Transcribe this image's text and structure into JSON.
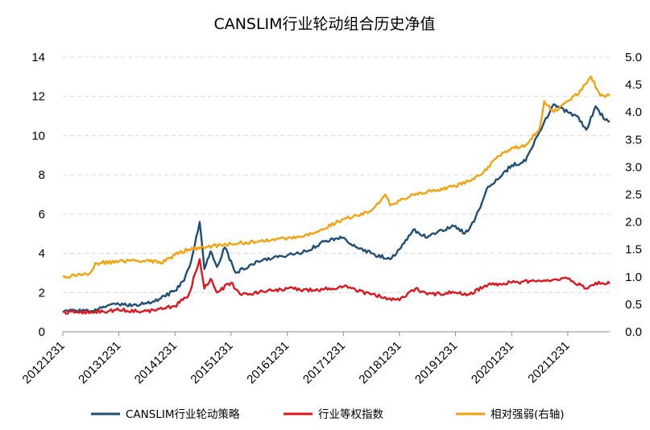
{
  "chart_data": {
    "type": "line",
    "title": "CANSLIM行业轮动组合历史净值",
    "x_tick_labels": [
      "20121231",
      "20131231",
      "20141231",
      "20151231",
      "20161231",
      "20171231",
      "20181231",
      "20191231",
      "20201231",
      "20211231"
    ],
    "x_range": [
      "2012-12-31",
      "2022-09-30"
    ],
    "y_left": {
      "min": 0,
      "max": 14,
      "ticks": [
        "0",
        "2",
        "4",
        "6",
        "8",
        "10",
        "12",
        "14"
      ]
    },
    "y_right": {
      "min": 0,
      "max": 5,
      "ticks": [
        "0.0",
        "0.5",
        "1.0",
        "1.5",
        "2.0",
        "2.5",
        "3.0",
        "3.5",
        "4.0",
        "4.5",
        "5.0"
      ]
    },
    "grid": true,
    "legend_position": "bottom",
    "series": [
      {
        "name": "CANSLIM行业轮动策略",
        "axis": "left",
        "color": "#1f4e79",
        "points": [
          [
            "2012-12-31",
            1.0
          ],
          [
            "2013-03-31",
            1.08
          ],
          [
            "2013-06-30",
            1.05
          ],
          [
            "2013-09-30",
            1.25
          ],
          [
            "2013-12-31",
            1.4
          ],
          [
            "2014-03-31",
            1.35
          ],
          [
            "2014-06-30",
            1.45
          ],
          [
            "2014-09-30",
            1.7
          ],
          [
            "2014-12-31",
            2.1
          ],
          [
            "2015-02-28",
            2.6
          ],
          [
            "2015-04-15",
            3.6
          ],
          [
            "2015-06-10",
            5.6
          ],
          [
            "2015-07-10",
            3.2
          ],
          [
            "2015-08-20",
            4.1
          ],
          [
            "2015-09-30",
            3.3
          ],
          [
            "2015-11-20",
            4.3
          ],
          [
            "2016-01-31",
            3.0
          ],
          [
            "2016-04-30",
            3.4
          ],
          [
            "2016-07-31",
            3.7
          ],
          [
            "2016-10-31",
            3.8
          ],
          [
            "2016-12-31",
            3.9
          ],
          [
            "2017-04-30",
            4.1
          ],
          [
            "2017-08-31",
            4.6
          ],
          [
            "2017-12-31",
            4.8
          ],
          [
            "2018-03-31",
            4.3
          ],
          [
            "2018-06-30",
            4.0
          ],
          [
            "2018-10-31",
            3.7
          ],
          [
            "2018-12-31",
            4.2
          ],
          [
            "2019-03-31",
            5.2
          ],
          [
            "2019-06-30",
            4.8
          ],
          [
            "2019-09-30",
            5.2
          ],
          [
            "2019-12-31",
            5.4
          ],
          [
            "2020-02-29",
            5.0
          ],
          [
            "2020-04-30",
            5.6
          ],
          [
            "2020-07-31",
            7.4
          ],
          [
            "2020-10-31",
            8.0
          ],
          [
            "2020-12-31",
            8.5
          ],
          [
            "2021-03-31",
            8.7
          ],
          [
            "2021-06-30",
            10.2
          ],
          [
            "2021-09-30",
            11.6
          ],
          [
            "2021-12-31",
            11.2
          ],
          [
            "2022-02-28",
            11.0
          ],
          [
            "2022-04-30",
            10.3
          ],
          [
            "2022-06-30",
            11.5
          ],
          [
            "2022-08-31",
            10.8
          ],
          [
            "2022-09-30",
            10.7
          ]
        ]
      },
      {
        "name": "行业等权指数",
        "axis": "left",
        "color": "#e0161e",
        "points": [
          [
            "2012-12-31",
            1.0
          ],
          [
            "2013-06-30",
            1.0
          ],
          [
            "2013-12-31",
            1.1
          ],
          [
            "2014-06-30",
            1.05
          ],
          [
            "2014-12-31",
            1.3
          ],
          [
            "2015-03-31",
            1.9
          ],
          [
            "2015-06-10",
            3.7
          ],
          [
            "2015-07-10",
            2.2
          ],
          [
            "2015-08-20",
            2.7
          ],
          [
            "2015-09-30",
            2.0
          ],
          [
            "2015-12-31",
            2.5
          ],
          [
            "2016-02-29",
            1.9
          ],
          [
            "2016-06-30",
            2.0
          ],
          [
            "2016-12-31",
            2.2
          ],
          [
            "2017-06-30",
            2.1
          ],
          [
            "2017-12-31",
            2.3
          ],
          [
            "2018-06-30",
            1.9
          ],
          [
            "2018-12-31",
            1.6
          ],
          [
            "2019-04-15",
            2.2
          ],
          [
            "2019-06-30",
            1.9
          ],
          [
            "2019-12-31",
            2.0
          ],
          [
            "2020-03-31",
            1.9
          ],
          [
            "2020-07-31",
            2.4
          ],
          [
            "2020-12-31",
            2.5
          ],
          [
            "2021-06-30",
            2.6
          ],
          [
            "2021-12-31",
            2.7
          ],
          [
            "2022-04-30",
            2.2
          ],
          [
            "2022-06-30",
            2.5
          ],
          [
            "2022-09-30",
            2.45
          ]
        ]
      },
      {
        "name": "相对强弱(右轴)",
        "axis": "right",
        "color": "#f5a30c",
        "points": [
          [
            "2012-12-31",
            1.0
          ],
          [
            "2013-03-31",
            1.02
          ],
          [
            "2013-06-30",
            1.08
          ],
          [
            "2013-07-31",
            1.25
          ],
          [
            "2013-12-31",
            1.28
          ],
          [
            "2014-06-30",
            1.3
          ],
          [
            "2014-09-30",
            1.25
          ],
          [
            "2014-12-31",
            1.4
          ],
          [
            "2015-03-31",
            1.5
          ],
          [
            "2015-07-31",
            1.55
          ],
          [
            "2015-12-31",
            1.6
          ],
          [
            "2016-06-30",
            1.65
          ],
          [
            "2016-12-31",
            1.7
          ],
          [
            "2017-06-30",
            1.8
          ],
          [
            "2017-12-31",
            2.05
          ],
          [
            "2018-06-30",
            2.2
          ],
          [
            "2018-09-30",
            2.5
          ],
          [
            "2018-10-31",
            2.3
          ],
          [
            "2019-03-31",
            2.5
          ],
          [
            "2019-06-30",
            2.55
          ],
          [
            "2019-12-31",
            2.65
          ],
          [
            "2020-03-31",
            2.75
          ],
          [
            "2020-06-30",
            2.9
          ],
          [
            "2020-09-30",
            3.2
          ],
          [
            "2020-12-31",
            3.35
          ],
          [
            "2021-03-31",
            3.4
          ],
          [
            "2021-06-30",
            3.7
          ],
          [
            "2021-07-31",
            4.2
          ],
          [
            "2021-09-30",
            4.0
          ],
          [
            "2021-12-31",
            4.2
          ],
          [
            "2022-03-31",
            4.4
          ],
          [
            "2022-05-31",
            4.65
          ],
          [
            "2022-07-31",
            4.3
          ],
          [
            "2022-09-30",
            4.3
          ]
        ]
      }
    ]
  }
}
